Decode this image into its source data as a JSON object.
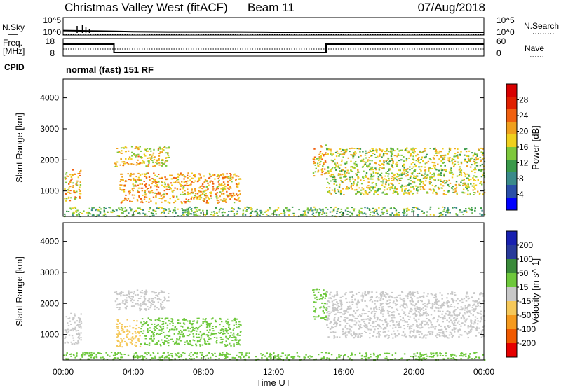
{
  "header": {
    "site": "Christmas Valley West (fitACF)",
    "beam": "Beam 11",
    "date": "07/Aug/2018"
  },
  "labels": {
    "nsky": "N.Sky",
    "nsearch": "N.Search",
    "freq_line1": "Freq.",
    "freq_line2": "[MHz]",
    "nave": "Nave",
    "cpid": "CPID",
    "mode": "normal (fast) 151 RF"
  },
  "noise_axis": {
    "left_ticks": [
      "10^5",
      "10^0"
    ],
    "right_ticks": [
      "10^5",
      "10^0"
    ]
  },
  "freq_axis": {
    "left_ticks": [
      "18",
      "8"
    ],
    "right_ticks": [
      "60",
      "0"
    ]
  },
  "chart_data": [
    {
      "type": "line",
      "name": "noise-panel",
      "series": [
        {
          "name": "N.Sky",
          "x": [
            0,
            1,
            2,
            3,
            4,
            6,
            8,
            10,
            12,
            14,
            16,
            18,
            20,
            22,
            24
          ],
          "y": [
            1.6,
            1.5,
            1.4,
            1.3,
            1.2,
            1.1,
            1.1,
            1.1,
            1.0,
            1.0,
            1.0,
            1.0,
            1.0,
            1.0,
            1.0
          ]
        },
        {
          "name": "N.Search",
          "x": [
            0,
            24
          ],
          "y": [
            0.2,
            0.2
          ]
        }
      ],
      "xlim": [
        0,
        24
      ]
    },
    {
      "type": "line",
      "name": "freq-panel",
      "series": [
        {
          "name": "Freq",
          "x": [
            0,
            2.9,
            2.9,
            15.0,
            15.0,
            24
          ],
          "y": [
            14.8,
            14.8,
            10.0,
            10.0,
            14.8,
            14.8
          ]
        },
        {
          "name": "Nave",
          "x": [
            0,
            24
          ],
          "y": [
            12,
            12
          ]
        }
      ],
      "xlim": [
        0,
        24
      ],
      "ylim": [
        8,
        18
      ]
    },
    {
      "type": "heatmap",
      "name": "power-panel",
      "ylabel": "Slant Range [km]",
      "ylim": [
        180,
        4600
      ],
      "yticks": [
        "1000",
        "2000",
        "3000",
        "4000"
      ],
      "colorbar": {
        "label": "Power [dB]",
        "ticks": [
          "4",
          "8",
          "12",
          "16",
          "20",
          "24",
          "28"
        ],
        "range": [
          0,
          30
        ]
      },
      "regions": [
        {
          "t0": 0.05,
          "t1": 1.0,
          "r0": 700,
          "r1": 1700,
          "level": 18
        },
        {
          "t0": 2.9,
          "t1": 6.0,
          "r0": 1800,
          "r1": 2450,
          "level": 17
        },
        {
          "t0": 3.2,
          "t1": 10.1,
          "r0": 620,
          "r1": 1600,
          "level": 19
        },
        {
          "t0": 14.2,
          "t1": 15.0,
          "r0": 1500,
          "r1": 2500,
          "level": 18
        },
        {
          "t0": 15.0,
          "t1": 24.0,
          "r0": 900,
          "r1": 2400,
          "level": 15
        },
        {
          "t0": 0.0,
          "t1": 24.0,
          "r0": 200,
          "r1": 500,
          "level": 12
        }
      ]
    },
    {
      "type": "heatmap",
      "name": "velocity-panel",
      "xlabel": "Time UT",
      "ylabel": "Slant Range [km]",
      "ylim": [
        180,
        4600
      ],
      "yticks": [
        "1000",
        "2000",
        "3000",
        "4000"
      ],
      "xticks": [
        "00:00",
        "04:00",
        "08:00",
        "12:00",
        "16:00",
        "20:00",
        "00:00"
      ],
      "colorbar": {
        "label": "Velocity [m s^-1]",
        "ticks": [
          "200",
          "100",
          "50",
          "15",
          "-15",
          "-50",
          "-100",
          "-200"
        ]
      },
      "regions": [
        {
          "t0": 0.05,
          "t1": 1.0,
          "r0": 700,
          "r1": 1700,
          "level": 0
        },
        {
          "t0": 2.9,
          "t1": 6.0,
          "r0": 1800,
          "r1": 2450,
          "level": 0
        },
        {
          "t0": 3.0,
          "t1": 4.4,
          "r0": 620,
          "r1": 1500,
          "level": -40
        },
        {
          "t0": 4.4,
          "t1": 10.1,
          "r0": 650,
          "r1": 1550,
          "level": 35
        },
        {
          "t0": 14.2,
          "t1": 15.0,
          "r0": 1500,
          "r1": 2500,
          "level": 20
        },
        {
          "t0": 15.0,
          "t1": 24.0,
          "r0": 900,
          "r1": 2400,
          "level": 0
        },
        {
          "t0": 0.0,
          "t1": 24.0,
          "r0": 200,
          "r1": 450,
          "level": 30
        }
      ]
    }
  ],
  "colors": {
    "power": [
      "#0000ff",
      "#2a4fa8",
      "#3a8a8a",
      "#3a9a4a",
      "#7ec83c",
      "#f0d01e",
      "#f0a01e",
      "#f06010",
      "#e02000",
      "#d80000"
    ],
    "velocity": [
      "#e60000",
      "#f05a00",
      "#f59a1e",
      "#f5c85a",
      "#c8c8c8",
      "#6ec83c",
      "#3a8a3a",
      "#283a9a",
      "#1820b0"
    ]
  }
}
